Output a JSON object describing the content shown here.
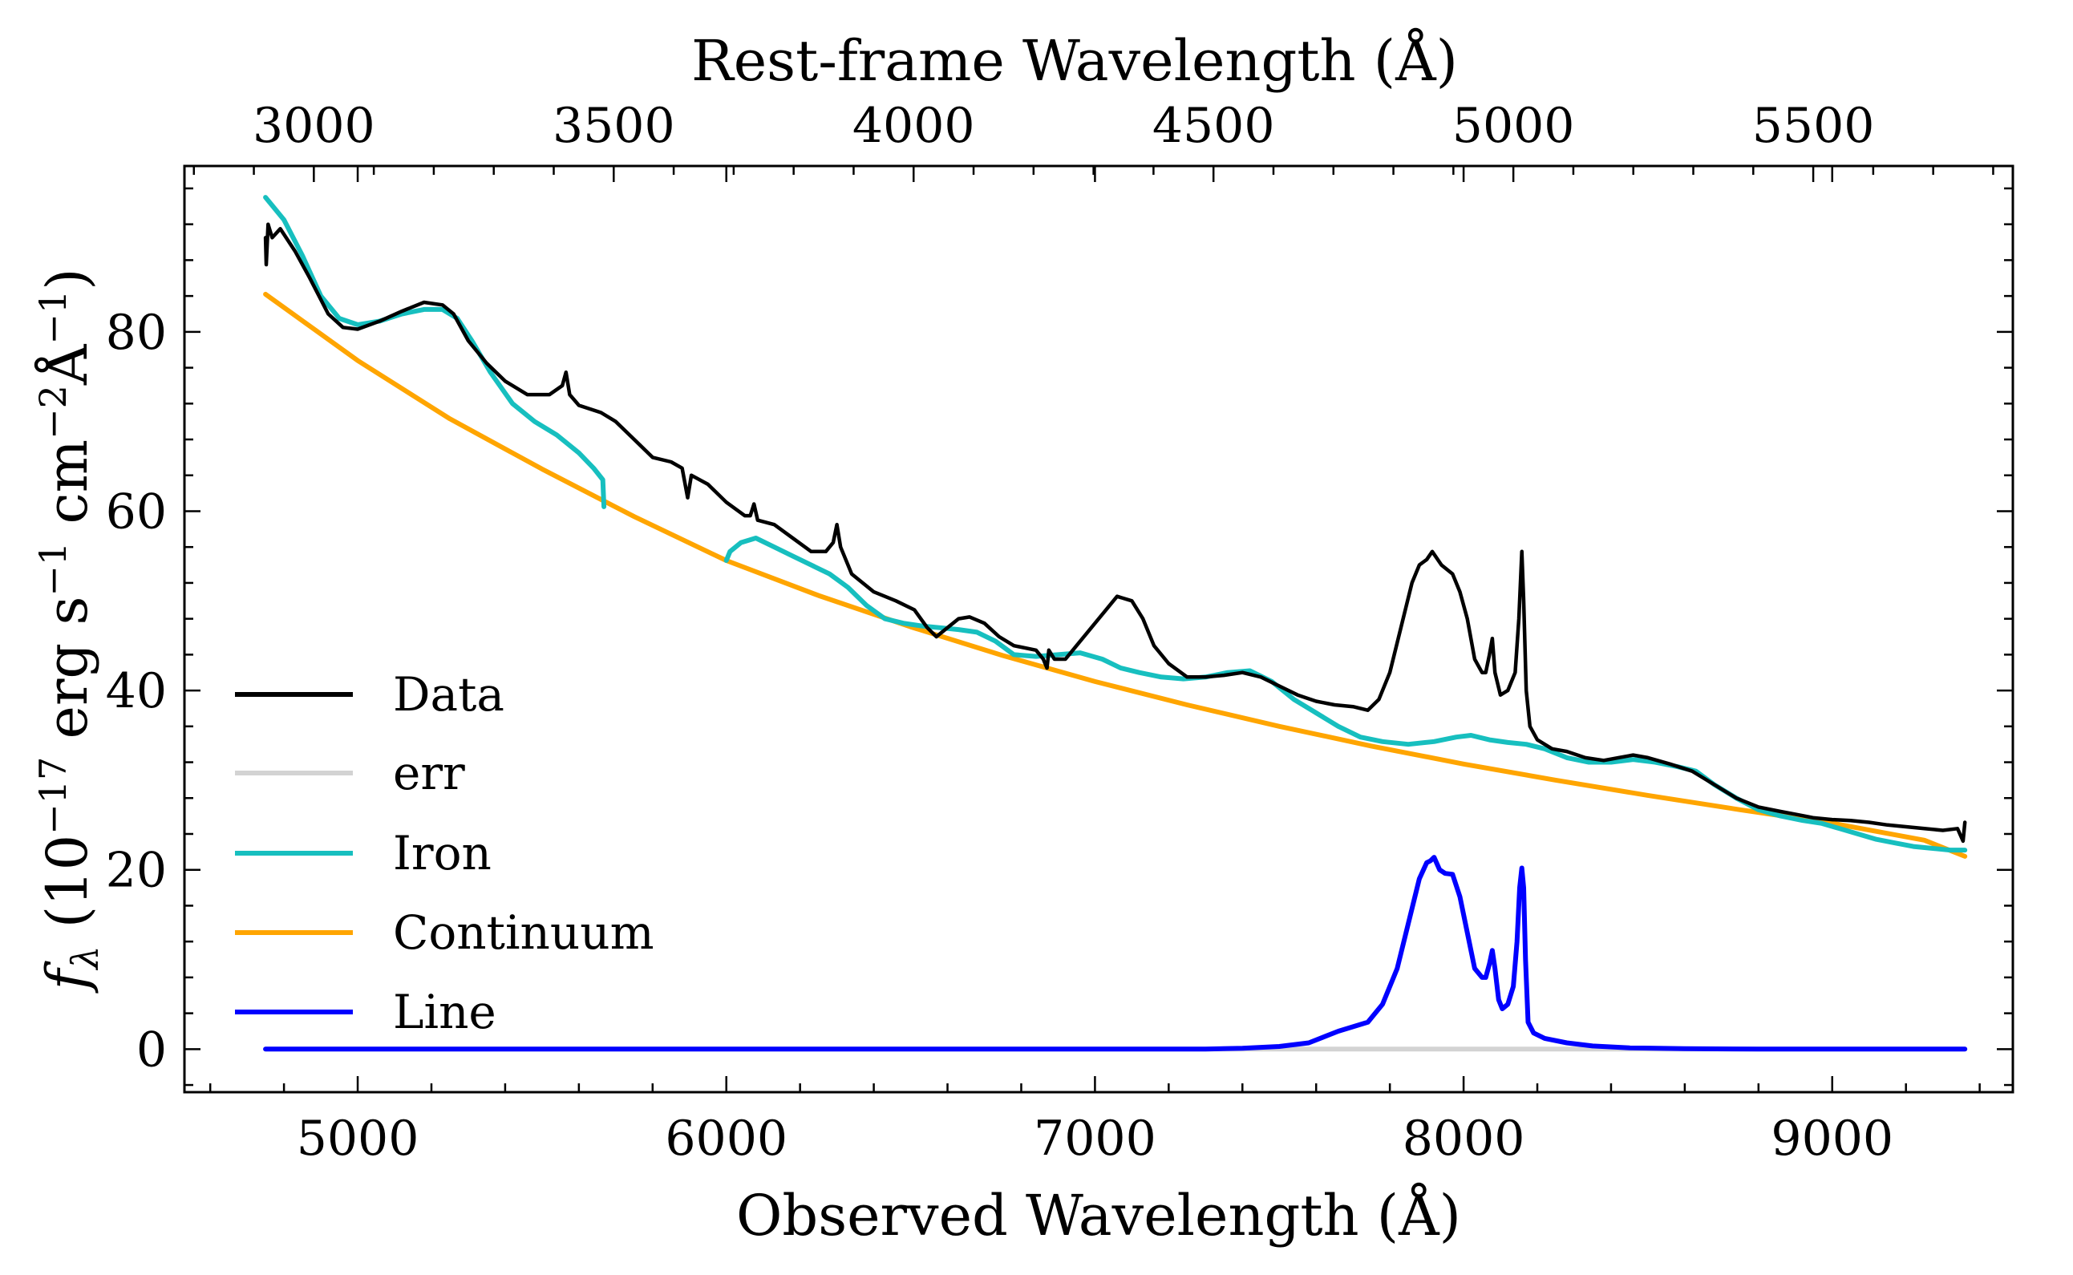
{
  "chart_data": {
    "type": "line",
    "title": "",
    "xlabel": "Observed Wavelength (Å)",
    "x2label": "Rest-frame Wavelength (Å)",
    "ylabel_prefix": "f",
    "ylabel_sub": "λ",
    "ylabel_main": "(10",
    "ylabel_exp1": "−17",
    "ylabel_mid1": " erg s",
    "ylabel_exp2": "−1",
    "ylabel_mid2": " cm",
    "ylabel_exp3": "−2",
    "ylabel_mid3": "Å",
    "ylabel_exp4": "−1",
    "ylabel_end": ")",
    "xlim": [
      4530,
      9490
    ],
    "ylim": [
      -4.8,
      98.5
    ],
    "redshift": 0.627,
    "x_ticks": [
      5000,
      6000,
      7000,
      8000,
      9000
    ],
    "x_tick_labels": [
      "5000",
      "6000",
      "7000",
      "8000",
      "9000"
    ],
    "x2_ticks": [
      3000,
      3500,
      4000,
      4500,
      5000,
      5500
    ],
    "x2_tick_labels": [
      "3000",
      "3500",
      "4000",
      "4500",
      "5000",
      "5500"
    ],
    "y_ticks": [
      0,
      20,
      40,
      60,
      80
    ],
    "y_tick_labels": [
      "0",
      "20",
      "40",
      "60",
      "80"
    ],
    "legend_position": "lower-left",
    "grid": false,
    "series": [
      {
        "name": "Data",
        "color": "#000000",
        "points": [
          [
            4750,
            90.5
          ],
          [
            4752,
            87.5
          ],
          [
            4757,
            92
          ],
          [
            4768,
            90.5
          ],
          [
            4790,
            91.5
          ],
          [
            4830,
            89
          ],
          [
            4870,
            86
          ],
          [
            4920,
            82
          ],
          [
            4960,
            80.5
          ],
          [
            5000,
            80.3
          ],
          [
            5060,
            81.2
          ],
          [
            5120,
            82.3
          ],
          [
            5180,
            83.3
          ],
          [
            5230,
            83
          ],
          [
            5260,
            82
          ],
          [
            5300,
            79
          ],
          [
            5350,
            76.5
          ],
          [
            5400,
            74.5
          ],
          [
            5460,
            73
          ],
          [
            5520,
            73
          ],
          [
            5555,
            74
          ],
          [
            5565,
            75.5
          ],
          [
            5575,
            73
          ],
          [
            5600,
            71.8
          ],
          [
            5660,
            71
          ],
          [
            5700,
            70
          ],
          [
            5750,
            68
          ],
          [
            5800,
            66
          ],
          [
            5850,
            65.5
          ],
          [
            5880,
            64.8
          ],
          [
            5895,
            61.5
          ],
          [
            5905,
            64
          ],
          [
            5950,
            63
          ],
          [
            6000,
            61
          ],
          [
            6050,
            59.5
          ],
          [
            6065,
            59.5
          ],
          [
            6075,
            60.8
          ],
          [
            6085,
            59
          ],
          [
            6130,
            58.5
          ],
          [
            6180,
            57
          ],
          [
            6230,
            55.5
          ],
          [
            6270,
            55.5
          ],
          [
            6290,
            56.5
          ],
          [
            6300,
            58.5
          ],
          [
            6310,
            56
          ],
          [
            6340,
            53
          ],
          [
            6400,
            51
          ],
          [
            6460,
            50
          ],
          [
            6510,
            49
          ],
          [
            6545,
            47
          ],
          [
            6570,
            46
          ],
          [
            6600,
            47
          ],
          [
            6630,
            48
          ],
          [
            6660,
            48.2
          ],
          [
            6700,
            47.5
          ],
          [
            6740,
            46
          ],
          [
            6780,
            45
          ],
          [
            6840,
            44.5
          ],
          [
            6860,
            43.5
          ],
          [
            6870,
            42.5
          ],
          [
            6875,
            44.5
          ],
          [
            6890,
            43.5
          ],
          [
            6920,
            43.5
          ],
          [
            6950,
            45
          ],
          [
            6980,
            46.5
          ],
          [
            7020,
            48.5
          ],
          [
            7060,
            50.5
          ],
          [
            7100,
            50
          ],
          [
            7130,
            48
          ],
          [
            7160,
            45
          ],
          [
            7200,
            43
          ],
          [
            7250,
            41.5
          ],
          [
            7300,
            41.5
          ],
          [
            7350,
            41.7
          ],
          [
            7400,
            42
          ],
          [
            7450,
            41.5
          ],
          [
            7500,
            40.5
          ],
          [
            7550,
            39.5
          ],
          [
            7600,
            38.8
          ],
          [
            7650,
            38.4
          ],
          [
            7700,
            38.2
          ],
          [
            7740,
            37.8
          ],
          [
            7770,
            39
          ],
          [
            7800,
            42
          ],
          [
            7830,
            47
          ],
          [
            7860,
            52
          ],
          [
            7880,
            54
          ],
          [
            7900,
            54.6
          ],
          [
            7915,
            55.5
          ],
          [
            7940,
            54
          ],
          [
            7970,
            53
          ],
          [
            7990,
            51
          ],
          [
            8010,
            48
          ],
          [
            8030,
            43.5
          ],
          [
            8050,
            42
          ],
          [
            8060,
            42
          ],
          [
            8070,
            44
          ],
          [
            8078,
            45.8
          ],
          [
            8085,
            42
          ],
          [
            8100,
            39.5
          ],
          [
            8120,
            40
          ],
          [
            8140,
            42
          ],
          [
            8150,
            48
          ],
          [
            8158,
            55.5
          ],
          [
            8163,
            50
          ],
          [
            8170,
            40
          ],
          [
            8180,
            36
          ],
          [
            8200,
            34.5
          ],
          [
            8240,
            33.5
          ],
          [
            8280,
            33.2
          ],
          [
            8330,
            32.5
          ],
          [
            8380,
            32.2
          ],
          [
            8420,
            32.5
          ],
          [
            8460,
            32.8
          ],
          [
            8500,
            32.5
          ],
          [
            8560,
            31.8
          ],
          [
            8620,
            31
          ],
          [
            8680,
            29.5
          ],
          [
            8740,
            28
          ],
          [
            8800,
            27
          ],
          [
            8860,
            26.5
          ],
          [
            8900,
            26.2
          ],
          [
            8950,
            25.8
          ],
          [
            9000,
            25.6
          ],
          [
            9050,
            25.5
          ],
          [
            9100,
            25.3
          ],
          [
            9150,
            25
          ],
          [
            9200,
            24.8
          ],
          [
            9250,
            24.6
          ],
          [
            9300,
            24.4
          ],
          [
            9340,
            24.6
          ],
          [
            9355,
            23.2
          ],
          [
            9360,
            25.3
          ]
        ]
      },
      {
        "name": "err",
        "color": "#d3d3d3",
        "points": [
          [
            4750,
            0
          ],
          [
            9360,
            0
          ]
        ]
      },
      {
        "name": "Iron",
        "color": "#17bfbf",
        "segments": [
          [
            [
              4750,
              95
            ],
            [
              4800,
              92.5
            ],
            [
              4850,
              88.5
            ],
            [
              4900,
              84
            ],
            [
              4950,
              81.5
            ],
            [
              5000,
              80.8
            ],
            [
              5060,
              81.2
            ],
            [
              5120,
              82
            ],
            [
              5180,
              82.5
            ],
            [
              5230,
              82.5
            ],
            [
              5270,
              81.5
            ],
            [
              5310,
              79
            ],
            [
              5360,
              75.5
            ],
            [
              5420,
              72
            ],
            [
              5480,
              70
            ],
            [
              5540,
              68.5
            ],
            [
              5600,
              66.5
            ],
            [
              5640,
              64.8
            ],
            [
              5665,
              63.5
            ],
            [
              5668,
              60.5
            ]
          ],
          [
            [
              6000,
              54.5
            ],
            [
              6010,
              55.5
            ],
            [
              6040,
              56.5
            ],
            [
              6080,
              57
            ],
            [
              6130,
              56
            ],
            [
              6180,
              55
            ],
            [
              6230,
              54
            ],
            [
              6280,
              53
            ],
            [
              6330,
              51.5
            ],
            [
              6380,
              49.5
            ],
            [
              6430,
              48
            ],
            [
              6480,
              47.5
            ],
            [
              6530,
              47.2
            ],
            [
              6580,
              47
            ],
            [
              6630,
              46.8
            ],
            [
              6680,
              46.5
            ],
            [
              6730,
              45.5
            ],
            [
              6780,
              44
            ],
            [
              6840,
              43.8
            ],
            [
              6900,
              44
            ],
            [
              6960,
              44.2
            ],
            [
              7020,
              43.5
            ],
            [
              7070,
              42.5
            ],
            [
              7120,
              42
            ],
            [
              7180,
              41.5
            ],
            [
              7240,
              41.3
            ],
            [
              7300,
              41.5
            ],
            [
              7360,
              42
            ],
            [
              7420,
              42.2
            ],
            [
              7480,
              41
            ],
            [
              7540,
              39
            ],
            [
              7600,
              37.5
            ],
            [
              7660,
              36
            ],
            [
              7720,
              34.8
            ],
            [
              7780,
              34.3
            ],
            [
              7850,
              34
            ],
            [
              7920,
              34.3
            ],
            [
              7980,
              34.8
            ],
            [
              8020,
              35
            ],
            [
              8070,
              34.5
            ],
            [
              8120,
              34.2
            ],
            [
              8170,
              34
            ],
            [
              8220,
              33.5
            ],
            [
              8280,
              32.5
            ],
            [
              8340,
              32
            ],
            [
              8400,
              32
            ],
            [
              8460,
              32.3
            ],
            [
              8520,
              32
            ],
            [
              8580,
              31.5
            ],
            [
              8630,
              31
            ],
            [
              8680,
              29.5
            ],
            [
              8740,
              28
            ],
            [
              8800,
              26.7
            ],
            [
              8860,
              26
            ],
            [
              8920,
              25.5
            ],
            [
              8970,
              25.2
            ],
            [
              9020,
              24.6
            ],
            [
              9070,
              24
            ],
            [
              9120,
              23.4
            ],
            [
              9170,
              23
            ],
            [
              9220,
              22.6
            ],
            [
              9270,
              22.4
            ],
            [
              9320,
              22.2
            ],
            [
              9360,
              22.2
            ]
          ]
        ]
      },
      {
        "name": "Continuum",
        "color": "#ffa500",
        "function": "powerlaw",
        "anchors": [
          [
            4750,
            84.2
          ],
          [
            6000,
            54.5
          ],
          [
            9360,
            21.5
          ]
        ],
        "points": [
          [
            4750,
            84.2
          ],
          [
            5000,
            76.8
          ],
          [
            5250,
            70.3
          ],
          [
            5500,
            64.7
          ],
          [
            5750,
            59.4
          ],
          [
            6000,
            54.5
          ],
          [
            6250,
            50.6
          ],
          [
            6500,
            47.1
          ],
          [
            6750,
            43.9
          ],
          [
            7000,
            41
          ],
          [
            7250,
            38.4
          ],
          [
            7500,
            36
          ],
          [
            7750,
            33.8
          ],
          [
            8000,
            31.8
          ],
          [
            8250,
            30
          ],
          [
            8500,
            28.3
          ],
          [
            8750,
            26.7
          ],
          [
            9000,
            25.2
          ],
          [
            9250,
            23.3
          ],
          [
            9360,
            21.5
          ]
        ]
      },
      {
        "name": "Line",
        "color": "#0000ff",
        "points": [
          [
            4750,
            0
          ],
          [
            7300,
            0
          ],
          [
            7400,
            0.1
          ],
          [
            7500,
            0.3
          ],
          [
            7580,
            0.7
          ],
          [
            7660,
            2
          ],
          [
            7740,
            3
          ],
          [
            7780,
            5
          ],
          [
            7820,
            9
          ],
          [
            7850,
            14
          ],
          [
            7880,
            19
          ],
          [
            7900,
            20.8
          ],
          [
            7910,
            21
          ],
          [
            7920,
            21.4
          ],
          [
            7935,
            20
          ],
          [
            7950,
            19.6
          ],
          [
            7970,
            19.5
          ],
          [
            7990,
            17
          ],
          [
            8010,
            13
          ],
          [
            8030,
            9
          ],
          [
            8050,
            8
          ],
          [
            8060,
            8
          ],
          [
            8070,
            9.5
          ],
          [
            8078,
            11
          ],
          [
            8085,
            9
          ],
          [
            8095,
            5.5
          ],
          [
            8105,
            4.5
          ],
          [
            8120,
            5
          ],
          [
            8135,
            7
          ],
          [
            8145,
            12
          ],
          [
            8152,
            18
          ],
          [
            8158,
            20.2
          ],
          [
            8163,
            18
          ],
          [
            8168,
            10
          ],
          [
            8175,
            3
          ],
          [
            8190,
            1.8
          ],
          [
            8220,
            1.2
          ],
          [
            8280,
            0.7
          ],
          [
            8350,
            0.35
          ],
          [
            8450,
            0.15
          ],
          [
            8600,
            0.05
          ],
          [
            8800,
            0
          ],
          [
            9360,
            0
          ]
        ]
      }
    ]
  }
}
